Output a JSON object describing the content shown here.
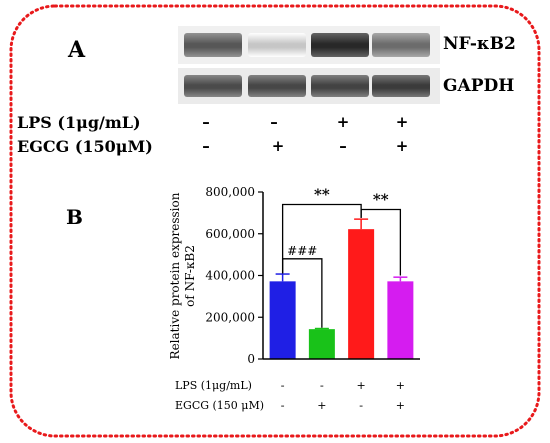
{
  "colors": {
    "border": "#e8191b",
    "lps_control": "#1f1fe5",
    "egcg_only": "#19c219",
    "lps_only": "#ff1a1a",
    "lps_egcg": "#d51cf0"
  },
  "panel_a": {
    "letter": "A",
    "blot_labels": [
      "NF-κB2",
      "GAPDH"
    ],
    "treatment_rows": [
      {
        "label": "LPS (1μg/mL)",
        "signs": [
          "–",
          "–",
          "+",
          "+"
        ]
      },
      {
        "label": "EGCG (150μM)",
        "signs": [
          "–",
          "+",
          "–",
          "+"
        ]
      }
    ],
    "band_intensity": {
      "nfkb2": [
        0.72,
        0.18,
        0.95,
        0.62
      ],
      "gapdh": [
        0.78,
        0.8,
        0.82,
        0.86
      ]
    }
  },
  "panel_b": {
    "letter": "B"
  },
  "chart_data": {
    "type": "bar",
    "categories": [
      "LPS- EGCG-",
      "LPS- EGCG+",
      "LPS+ EGCG-",
      "LPS+ EGCG+"
    ],
    "values": [
      372000,
      143000,
      622000,
      372000
    ],
    "errors": [
      35000,
      3000,
      48000,
      20000
    ],
    "bar_colors": [
      "#1f1fe5",
      "#19c219",
      "#ff1a1a",
      "#d51cf0"
    ],
    "ylabel": "Relative protein expression of NF-κB2",
    "ylim": [
      0,
      800000
    ],
    "yticks": [
      0,
      200000,
      400000,
      600000,
      800000
    ],
    "ytick_labels": [
      "0",
      "200,000",
      "400,000",
      "600,000",
      "800,000"
    ],
    "condition_rows": [
      {
        "label": "LPS (1μg/mL)",
        "signs": [
          "-",
          "-",
          "+",
          "+"
        ]
      },
      {
        "label": "EGCG (150 μM)",
        "signs": [
          "-",
          "+",
          "-",
          "+"
        ]
      }
    ],
    "annotations": [
      {
        "text": "###",
        "from": 0,
        "to": 1
      },
      {
        "text": "**",
        "from": 0,
        "to": 2
      },
      {
        "text": "**",
        "from": 2,
        "to": 3
      }
    ]
  }
}
